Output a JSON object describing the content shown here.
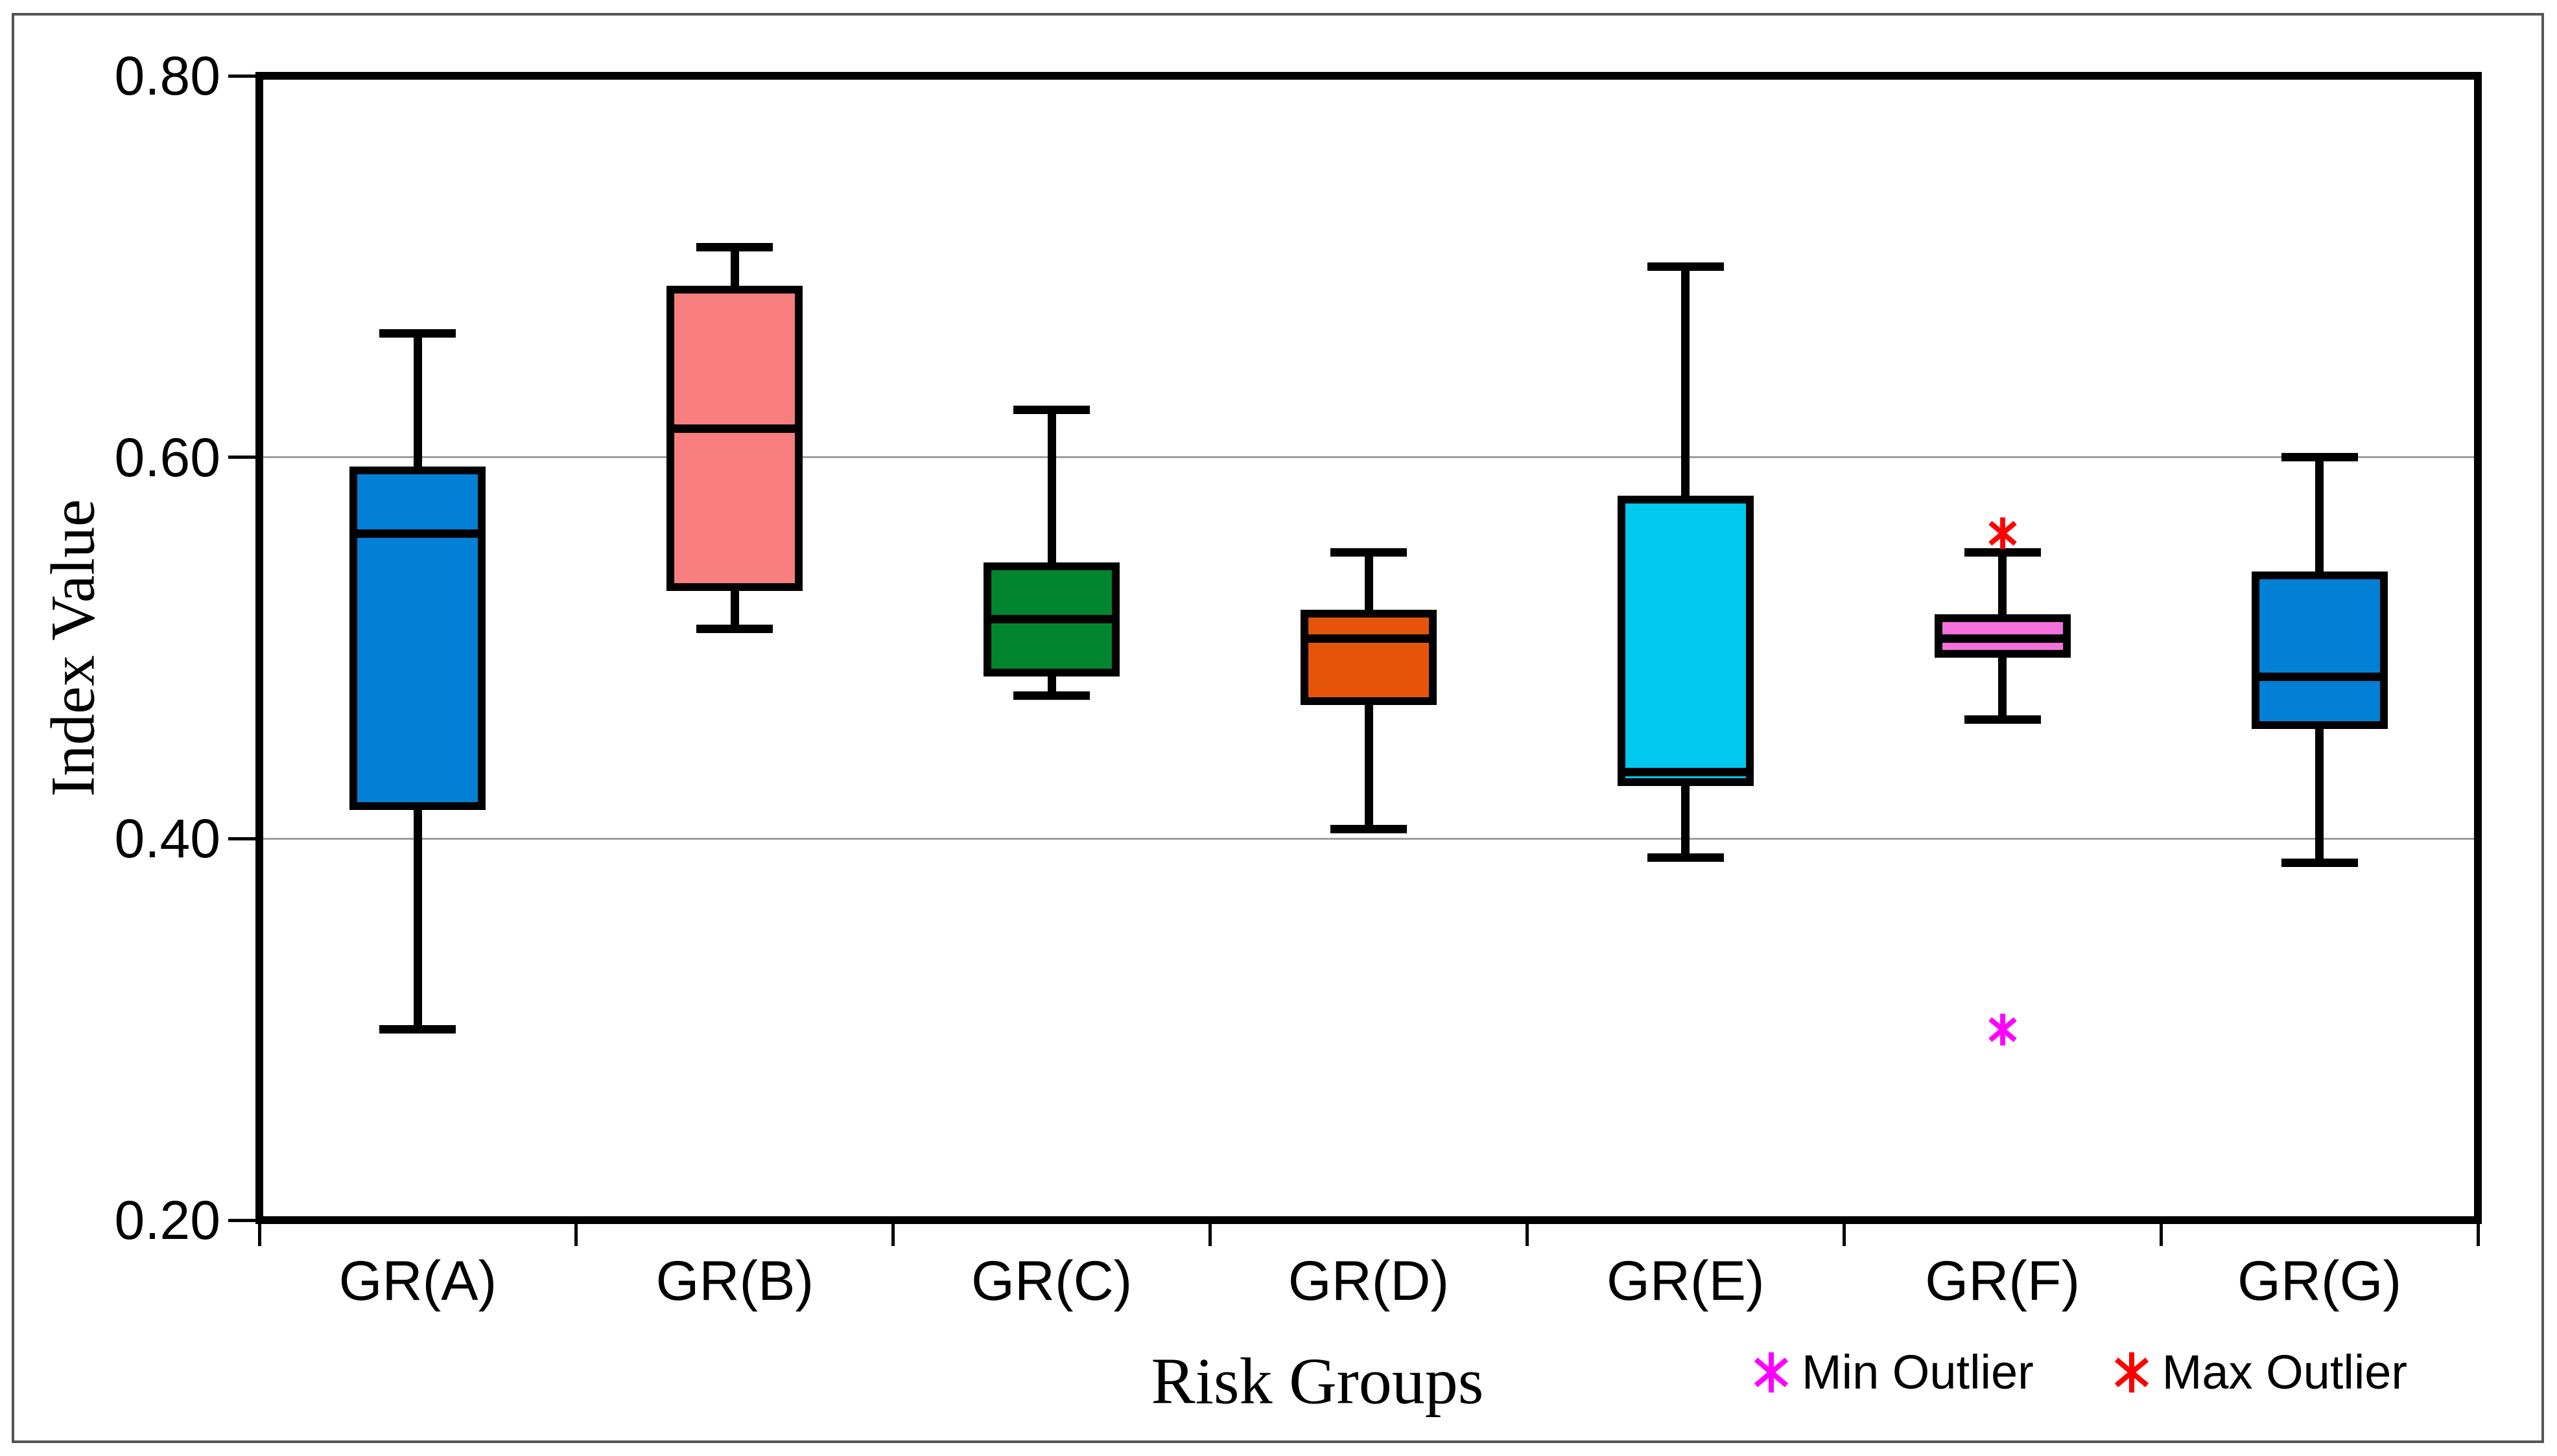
{
  "figure": {
    "background": "#ffffff",
    "frame_color": "#555555",
    "axis_color": "#000000"
  },
  "chart_data": {
    "type": "boxplot",
    "title": "",
    "xlabel": "Risk Groups",
    "ylabel": "Index Value",
    "categories": [
      "GR(A)",
      "GR(B)",
      "GR(C)",
      "GR(D)",
      "GR(E)",
      "GR(F)",
      "GR(G)"
    ],
    "y_axis": {
      "min": 0.2,
      "max": 0.8,
      "tick_labels": [
        "0.80",
        "0.60",
        "0.40",
        "0.20"
      ],
      "tick_values": [
        0.8,
        0.6,
        0.4,
        0.2
      ],
      "gridline_values": [
        0.6,
        0.4
      ],
      "grid_color": "#9e9e9e"
    },
    "series": [
      {
        "category": "GR(A)",
        "fill": "#0280D6",
        "whisker_low": 0.3,
        "q1": 0.415,
        "median": 0.56,
        "q3": 0.595,
        "whisker_high": 0.665
      },
      {
        "category": "GR(B)",
        "fill": "#F97F7F",
        "whisker_low": 0.51,
        "q1": 0.53,
        "median": 0.615,
        "q3": 0.69,
        "whisker_high": 0.71
      },
      {
        "category": "GR(C)",
        "fill": "#02852F",
        "whisker_low": 0.475,
        "q1": 0.485,
        "median": 0.515,
        "q3": 0.545,
        "whisker_high": 0.625
      },
      {
        "category": "GR(D)",
        "fill": "#E4550A",
        "whisker_low": 0.405,
        "q1": 0.47,
        "median": 0.505,
        "q3": 0.52,
        "whisker_high": 0.55
      },
      {
        "category": "GR(E)",
        "fill": "#00C8EE",
        "whisker_low": 0.39,
        "q1": 0.4275,
        "median": 0.435,
        "q3": 0.58,
        "whisker_high": 0.7
      },
      {
        "category": "GR(F)",
        "fill": "#F470DC",
        "whisker_low": 0.4625,
        "q1": 0.495,
        "median": 0.505,
        "q3": 0.5175,
        "whisker_high": 0.55,
        "outliers": [
          {
            "kind": "min",
            "value": 0.3,
            "color": "#FF00FF"
          },
          {
            "kind": "max",
            "value": 0.56,
            "color": "#FF0000"
          }
        ]
      },
      {
        "category": "GR(G)",
        "fill": "#0280D6",
        "whisker_low": 0.3875,
        "q1": 0.4575,
        "median": 0.485,
        "q3": 0.54,
        "whisker_high": 0.6
      }
    ],
    "legend": [
      {
        "label": "Min Outlier",
        "marker": "asterisk-icon",
        "color": "#FF00FF"
      },
      {
        "label": "Max Outlier",
        "marker": "asterisk-icon",
        "color": "#FF0000"
      }
    ],
    "layout_hints": {
      "grid": "horizontal-gridlines-only",
      "legend_position": "bottom-right",
      "boxes_per_row": 7
    }
  }
}
